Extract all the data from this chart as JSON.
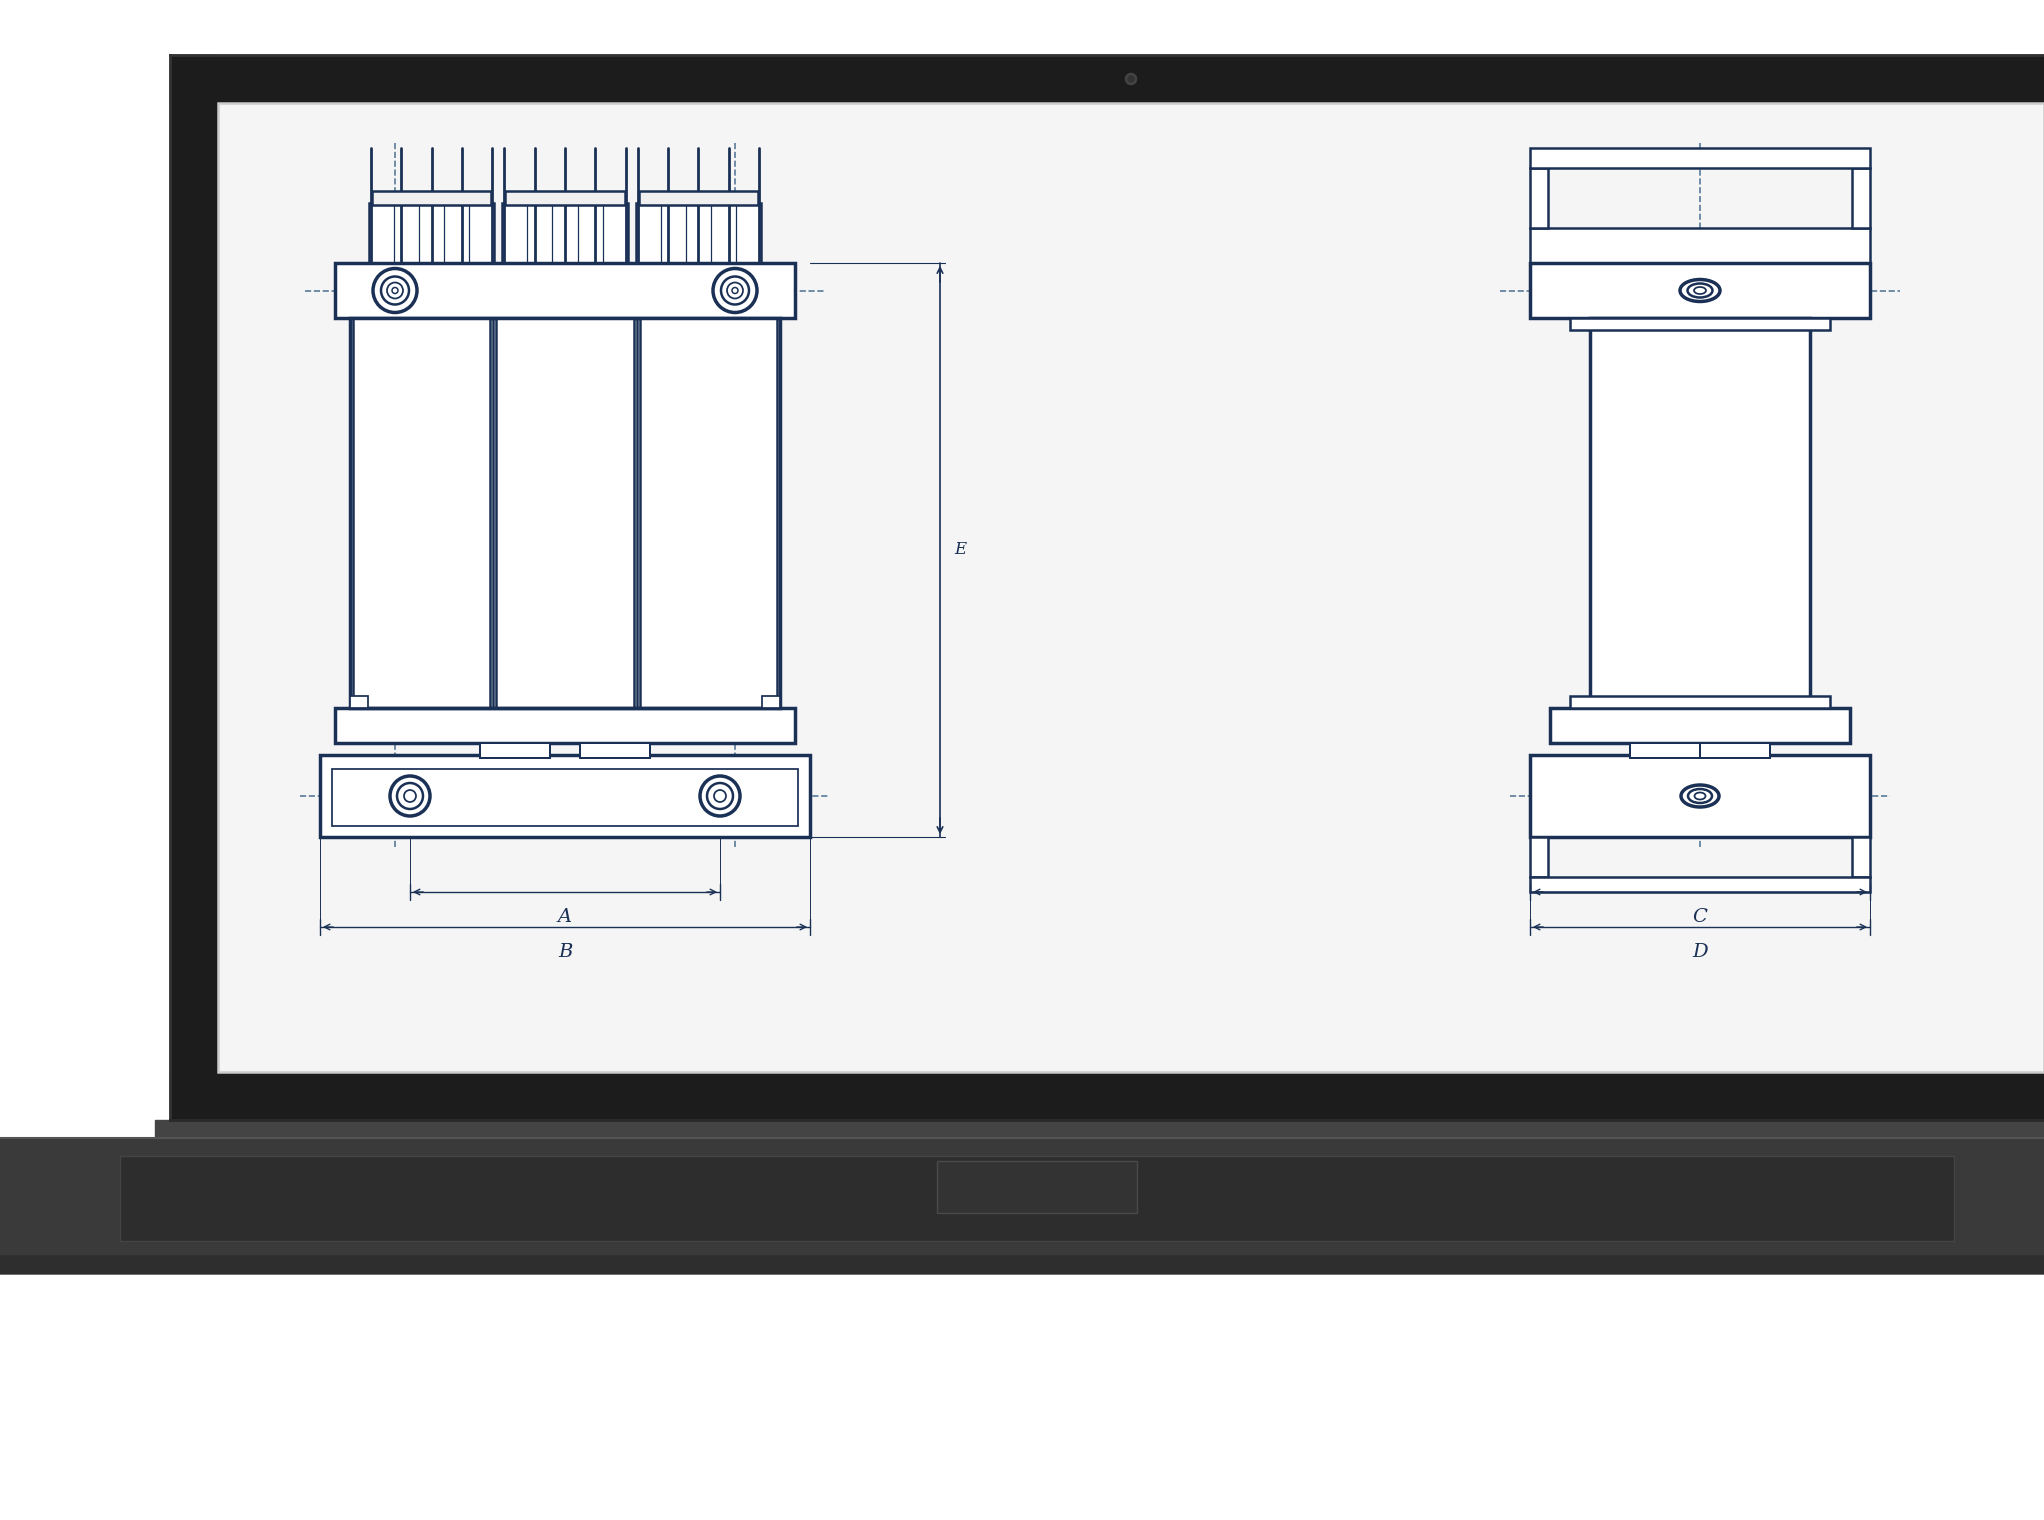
{
  "bg_color": "#ffffff",
  "frame_color": "#1e1e1e",
  "screen_bg": "#f8f8f8",
  "lc": "#1a3055",
  "lw": 1.8,
  "lw2": 2.5,
  "dc": "#5a7a9a",
  "dlw": 1.2,
  "label_A": "A",
  "label_B": "B",
  "label_C": "C",
  "label_D": "D",
  "label_E": "E"
}
